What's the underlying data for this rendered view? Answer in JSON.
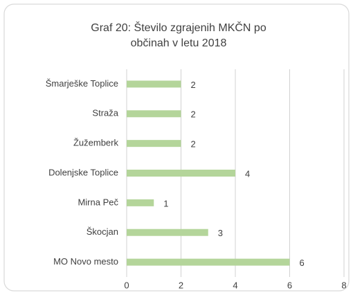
{
  "chart_data": {
    "type": "hbar",
    "title": "Graf 20: Število zgrajenih MKČN po občinah v letu 2018",
    "categories": [
      "Šmarješke Toplice",
      "Straža",
      "Žužemberk",
      "Dolenjske Toplice",
      "Mirna Peč",
      "Škocjan",
      "MO Novo mesto"
    ],
    "values": [
      2,
      2,
      2,
      4,
      1,
      3,
      6
    ],
    "color": "#b4d59a",
    "xlim": [
      0,
      8
    ],
    "xticks": [
      0,
      2,
      4,
      6,
      8
    ],
    "grid": true
  }
}
